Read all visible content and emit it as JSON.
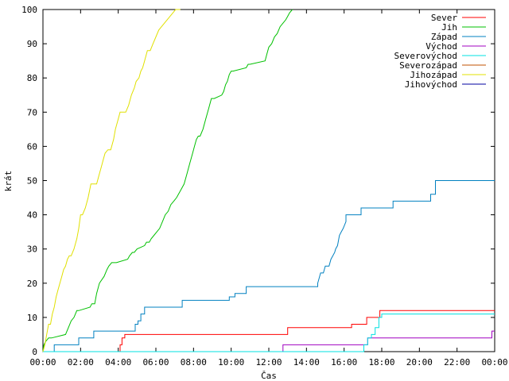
{
  "chart_data": {
    "type": "line",
    "xlabel": "Čas",
    "ylabel": "krát",
    "xlim": [
      0,
      24
    ],
    "ylim": [
      0,
      100
    ],
    "x_ticks": [
      {
        "value": 0,
        "label": "00:00"
      },
      {
        "value": 2,
        "label": "02:00"
      },
      {
        "value": 4,
        "label": "04:00"
      },
      {
        "value": 6,
        "label": "06:00"
      },
      {
        "value": 8,
        "label": "08:00"
      },
      {
        "value": 10,
        "label": "10:00"
      },
      {
        "value": 12,
        "label": "12:00"
      },
      {
        "value": 14,
        "label": "14:00"
      },
      {
        "value": 16,
        "label": "16:00"
      },
      {
        "value": 18,
        "label": "18:00"
      },
      {
        "value": 20,
        "label": "20:00"
      },
      {
        "value": 22,
        "label": "22:00"
      },
      {
        "value": 24,
        "label": "00:00"
      }
    ],
    "y_ticks": [
      {
        "value": 0,
        "label": "0"
      },
      {
        "value": 10,
        "label": "10"
      },
      {
        "value": 20,
        "label": "20"
      },
      {
        "value": 30,
        "label": "30"
      },
      {
        "value": 40,
        "label": "40"
      },
      {
        "value": 50,
        "label": "50"
      },
      {
        "value": 60,
        "label": "60"
      },
      {
        "value": 70,
        "label": "70"
      },
      {
        "value": 80,
        "label": "80"
      },
      {
        "value": 90,
        "label": "90"
      },
      {
        "value": 100,
        "label": "100"
      }
    ],
    "grid": false,
    "legend_position": "top-right",
    "series": [
      {
        "name": "Sever",
        "color": "#ff0000",
        "x": [
          0,
          4.1,
          4.1,
          4.2,
          4.2,
          4.35,
          4.35,
          13.0,
          13.0,
          16.4,
          16.4,
          17.2,
          17.2,
          17.9,
          17.9,
          24
        ],
        "y": [
          0,
          0,
          2,
          2,
          4,
          4,
          5,
          5,
          7,
          7,
          8,
          8,
          10,
          10,
          12,
          12
        ]
      },
      {
        "name": "Jih",
        "color": "#00c000",
        "x": [
          0,
          0.05,
          0.15,
          0.3,
          0.4,
          0.45,
          1.2,
          1.35,
          1.5,
          1.65,
          1.8,
          1.9,
          2.5,
          2.6,
          2.75,
          2.85,
          3.0,
          3.25,
          3.4,
          3.5,
          3.65,
          3.75,
          3.9,
          4.5,
          4.6,
          4.75,
          4.85,
          5.0,
          5.4,
          5.5,
          5.65,
          5.75,
          5.9,
          6.05,
          6.2,
          6.35,
          6.5,
          6.65,
          6.8,
          6.95,
          7.1,
          7.3,
          7.5,
          7.65,
          7.8,
          7.95,
          8.05,
          8.15,
          8.25,
          8.35,
          8.5,
          8.65,
          8.8,
          8.95,
          9.1,
          9.5,
          9.6,
          9.7,
          9.8,
          9.9,
          10.0,
          10.1,
          10.8,
          10.9,
          11.0,
          11.8,
          11.9,
          12.0,
          12.15,
          12.3,
          12.45,
          12.6,
          12.75,
          12.9,
          13.0,
          13.1,
          13.25
        ],
        "y": [
          0,
          2,
          3,
          4,
          4,
          4,
          5,
          7,
          9,
          10,
          12,
          12,
          13,
          14,
          14,
          17,
          20,
          22,
          24,
          25,
          26,
          26,
          26,
          27,
          28,
          29,
          29,
          30,
          31,
          32,
          32,
          33,
          34,
          35,
          36,
          38,
          40,
          41,
          43,
          44,
          45,
          47,
          49,
          52,
          55,
          58,
          60,
          62,
          63,
          63,
          65,
          68,
          71,
          74,
          74,
          75,
          76,
          78,
          79,
          81,
          82,
          82,
          83,
          84,
          84,
          85,
          87,
          89,
          90,
          92,
          93,
          95,
          96,
          97,
          98,
          99,
          100
        ]
      },
      {
        "name": "Západ",
        "color": "#0080c0",
        "x": [
          0,
          0.6,
          0.6,
          1.9,
          1.9,
          2.7,
          2.7,
          4.9,
          4.9,
          5.05,
          5.05,
          5.2,
          5.2,
          5.4,
          5.4,
          7.4,
          7.4,
          9.9,
          9.9,
          10.2,
          10.2,
          10.8,
          10.8,
          14.6,
          14.6,
          14.7,
          14.75,
          14.9,
          14.95,
          15.0,
          15.2,
          15.3,
          15.4,
          15.5,
          15.55,
          15.65,
          15.75,
          15.85,
          15.95,
          16.1,
          16.1,
          16.9,
          16.9,
          18.6,
          18.6,
          20.6,
          20.6,
          20.85,
          20.85,
          24
        ],
        "y": [
          0,
          0,
          2,
          2,
          4,
          4,
          6,
          6,
          8,
          8,
          9,
          9,
          11,
          11,
          13,
          13,
          15,
          15,
          16,
          16,
          17,
          17,
          19,
          19,
          20,
          22,
          23,
          23,
          24,
          25,
          25,
          27,
          28,
          29,
          30,
          31,
          34,
          35,
          36,
          38,
          40,
          40,
          42,
          42,
          44,
          44,
          46,
          46,
          50,
          50
        ]
      },
      {
        "name": "Východ",
        "color": "#a000c0",
        "x": [
          0,
          12.75,
          12.75,
          17.25,
          17.25,
          23.85,
          23.85,
          24
        ],
        "y": [
          0,
          0,
          2,
          2,
          4,
          4,
          6,
          6
        ]
      },
      {
        "name": "Severovýchod",
        "color": "#00e0e0",
        "x": [
          0,
          17.05,
          17.05,
          17.25,
          17.25,
          17.45,
          17.45,
          17.65,
          17.65,
          17.85,
          17.85,
          18.0,
          18.0,
          24
        ],
        "y": [
          0,
          0,
          2,
          2,
          4,
          4,
          5,
          5,
          7,
          7,
          10,
          10,
          11,
          11
        ]
      },
      {
        "name": "Severozápad",
        "color": "#c05000",
        "x": [],
        "y": []
      },
      {
        "name": "Jihozápad",
        "color": "#e0e000",
        "x": [
          0,
          0.1,
          0.2,
          0.3,
          0.4,
          0.5,
          0.6,
          0.7,
          0.8,
          0.9,
          1.0,
          1.1,
          1.2,
          1.3,
          1.4,
          1.5,
          1.65,
          1.8,
          1.9,
          2.0,
          2.1,
          2.25,
          2.4,
          2.55,
          2.7,
          2.85,
          3.0,
          3.1,
          3.2,
          3.3,
          3.45,
          3.6,
          3.75,
          3.85,
          4.0,
          4.1,
          4.25,
          4.4,
          4.55,
          4.7,
          4.85,
          4.95,
          5.1,
          5.2,
          5.3,
          5.4,
          5.55,
          5.7,
          5.85,
          6.0,
          6.15,
          6.3,
          6.45,
          6.6,
          6.75,
          6.9,
          7.05,
          7.2,
          7.3
        ],
        "y": [
          0,
          2,
          5,
          8,
          8,
          11,
          13,
          16,
          18,
          20,
          22,
          24,
          25,
          27,
          28,
          28,
          30,
          33,
          36,
          40,
          40,
          42,
          45,
          49,
          49,
          49,
          52,
          54,
          56,
          58,
          59,
          59,
          62,
          65,
          68,
          70,
          70,
          70,
          72,
          75,
          77,
          79,
          80,
          82,
          83,
          85,
          88,
          88,
          90,
          92,
          94,
          95,
          96,
          97,
          98,
          99,
          100,
          100,
          100
        ]
      },
      {
        "name": "Jihovýchod",
        "color": "#0000a0",
        "x": [],
        "y": []
      }
    ]
  }
}
